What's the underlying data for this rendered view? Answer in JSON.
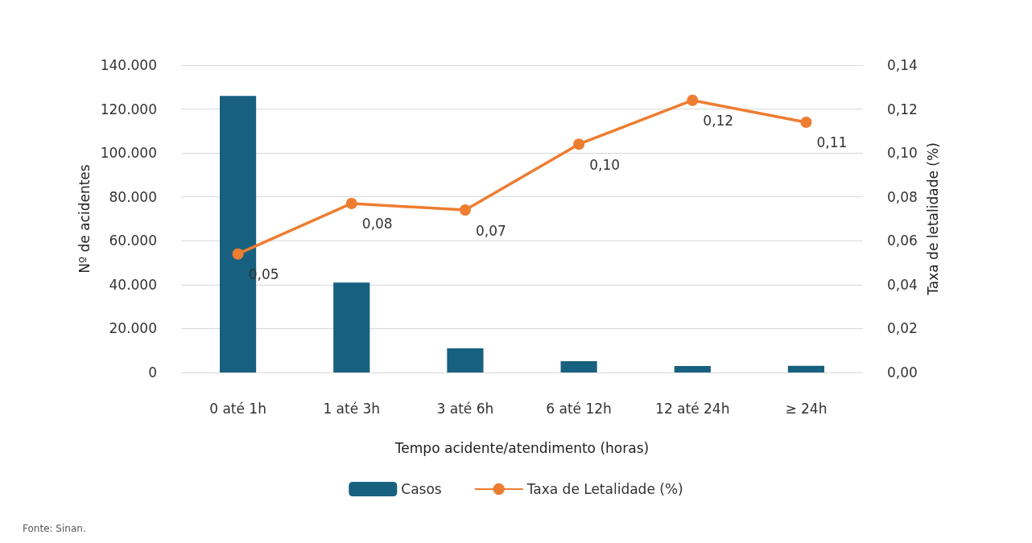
{
  "chart_data": {
    "type": "bar",
    "categories": [
      "0 até 1h",
      "1 até 3h",
      "3 até 6h",
      "6 até 12h",
      "12 até 24h",
      "≥ 24h"
    ],
    "xlabel": "Tempo acidente/atendimento (horas)",
    "ylabel": "Nº de acidentes",
    "y2label": "Taxa de letalidade (%)",
    "series": [
      {
        "name": "Casos",
        "color": "#17607f",
        "values": [
          126000,
          41000,
          11000,
          5100,
          2900,
          3000
        ]
      },
      {
        "name": "Taxa de Letalidade (%)",
        "type": "line",
        "axis": "y2",
        "color": "#ed7d31",
        "marker": "circle",
        "values": [
          0.054,
          0.077,
          0.074,
          0.104,
          0.124,
          0.114
        ],
        "value_labels": [
          "0,05",
          "0,08",
          "0,07",
          "0,10",
          "0,12",
          "0,11"
        ]
      }
    ],
    "ylim": [
      0,
      140000
    ],
    "yticks": [
      {
        "value": 0,
        "label": "0"
      },
      {
        "value": 20000,
        "label": "20.000"
      },
      {
        "value": 40000,
        "label": "40.000"
      },
      {
        "value": 60000,
        "label": "60.000"
      },
      {
        "value": 80000,
        "label": "80.000"
      },
      {
        "value": 100000,
        "label": "100.000"
      },
      {
        "value": 120000,
        "label": "120.000"
      },
      {
        "value": 140000,
        "label": "140.000"
      }
    ],
    "y2lim": [
      0,
      0.14
    ],
    "y2ticks": [
      {
        "value": 0,
        "label": "0,00"
      },
      {
        "value": 0.02,
        "label": "0,02"
      },
      {
        "value": 0.04,
        "label": "0,04"
      },
      {
        "value": 0.06,
        "label": "0,06"
      },
      {
        "value": 0.08,
        "label": "0,08"
      },
      {
        "value": 0.1,
        "label": "0,10"
      },
      {
        "value": 0.12,
        "label": "0,12"
      },
      {
        "value": 0.14,
        "label": "0,14"
      }
    ],
    "grid": "y",
    "legend": "bottom",
    "annotations": [
      "Fonte: Sinan."
    ]
  }
}
